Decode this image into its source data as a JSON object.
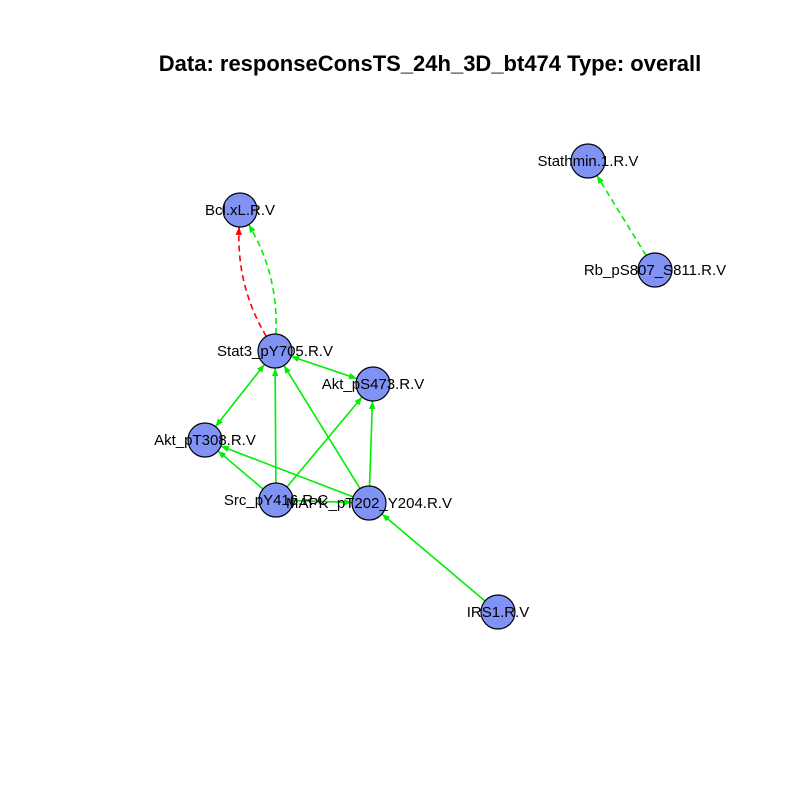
{
  "title": "Data: responseConsTS_24h_3D_bt474 Type: overall",
  "colors": {
    "node_fill": "#8093f5",
    "node_stroke": "#000000",
    "edge_green": "#00ee00",
    "edge_red": "#ff0000",
    "background": "#ffffff"
  },
  "nodes": [
    {
      "id": "stathmin",
      "label": "Stathmin.1.R.V"
    },
    {
      "id": "bclxl",
      "label": "Bcl.xL.R.V"
    },
    {
      "id": "rb",
      "label": "Rb_pS807_S811.R.V"
    },
    {
      "id": "stat3",
      "label": "Stat3_pY705.R.V"
    },
    {
      "id": "akt473",
      "label": "Akt_pS473.R.V"
    },
    {
      "id": "akt308",
      "label": "Akt_pT308.R.V"
    },
    {
      "id": "src",
      "label": "Src_pY416.R.C"
    },
    {
      "id": "mapk",
      "label": "MAPK_pT202_Y204.R.V"
    },
    {
      "id": "irs1",
      "label": "IRS1.R.V"
    }
  ],
  "edges": [
    {
      "from": "rb",
      "to": "stathmin",
      "color": "green",
      "style": "dashed",
      "arrow": "end"
    },
    {
      "from": "stat3",
      "to": "bclxl",
      "color": "green",
      "style": "dashed",
      "arrow": "end"
    },
    {
      "from": "stat3",
      "to": "bclxl",
      "color": "red",
      "style": "dashed",
      "arrow": "end"
    },
    {
      "from": "stat3",
      "to": "akt473",
      "color": "green",
      "style": "solid",
      "arrow": "both"
    },
    {
      "from": "stat3",
      "to": "akt308",
      "color": "green",
      "style": "solid",
      "arrow": "both"
    },
    {
      "from": "src",
      "to": "stat3",
      "color": "green",
      "style": "solid",
      "arrow": "end"
    },
    {
      "from": "mapk",
      "to": "stat3",
      "color": "green",
      "style": "solid",
      "arrow": "end"
    },
    {
      "from": "src",
      "to": "akt473",
      "color": "green",
      "style": "solid",
      "arrow": "end"
    },
    {
      "from": "mapk",
      "to": "akt473",
      "color": "green",
      "style": "solid",
      "arrow": "end"
    },
    {
      "from": "src",
      "to": "akt308",
      "color": "green",
      "style": "solid",
      "arrow": "end"
    },
    {
      "from": "mapk",
      "to": "akt308",
      "color": "green",
      "style": "solid",
      "arrow": "end"
    },
    {
      "from": "src",
      "to": "mapk",
      "color": "green",
      "style": "solid",
      "arrow": "end"
    },
    {
      "from": "irs1",
      "to": "mapk",
      "color": "green",
      "style": "solid",
      "arrow": "end"
    }
  ]
}
